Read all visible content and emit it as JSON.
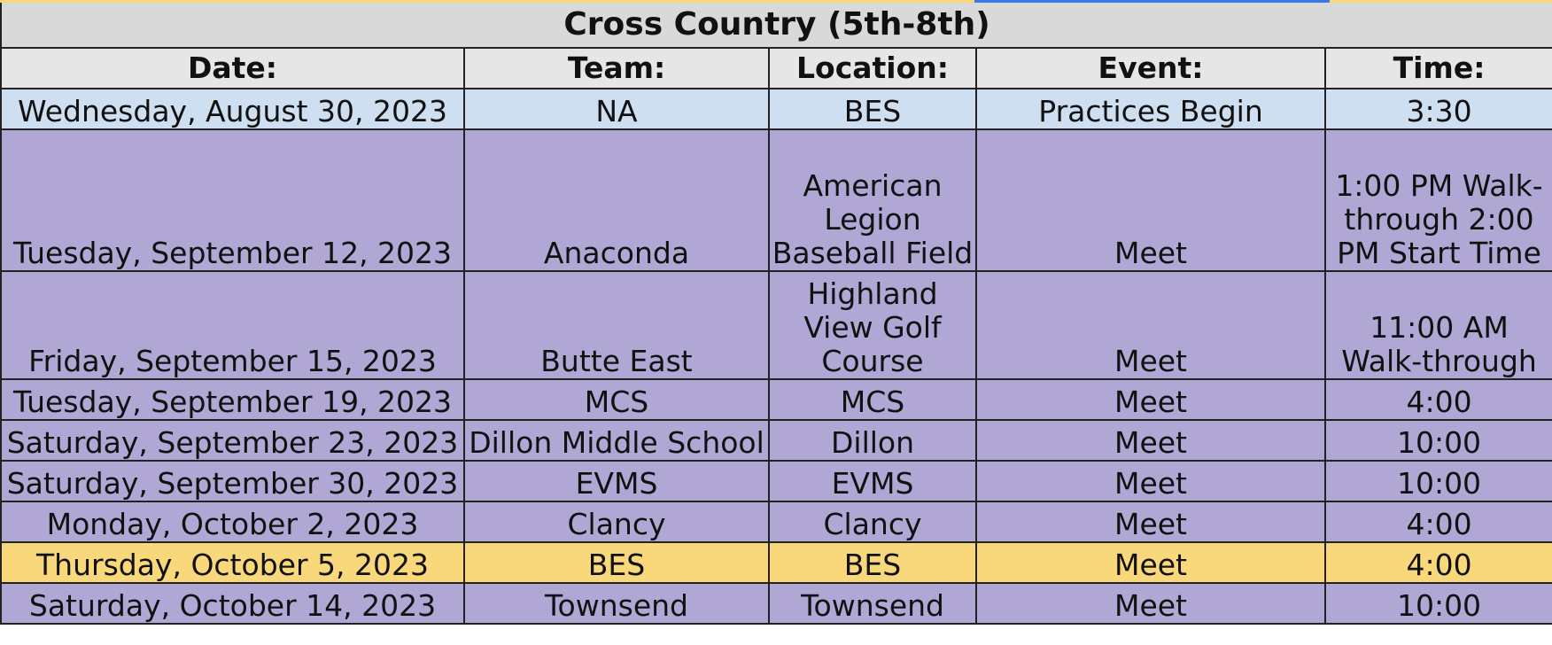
{
  "title": "Cross Country (5th-8th)",
  "columns": [
    "Date:",
    "Team:",
    "Location:",
    "Event:",
    "Time:"
  ],
  "rows": [
    {
      "style": "practice",
      "date": "Wednesday, August 30, 2023",
      "team": "NA",
      "location": "BES",
      "event": "Practices Begin",
      "time": "3:30"
    },
    {
      "style": "meet",
      "date": "Tuesday, September 12, 2023",
      "team": "Anaconda",
      "location": "American Legion Baseball Field",
      "event": "Meet",
      "time": "1:00 PM Walk-through 2:00 PM Start Time"
    },
    {
      "style": "meet",
      "date": "Friday, September 15, 2023",
      "team": "Butte East",
      "location": "Highland View Golf Course",
      "event": "Meet",
      "time": "11:00 AM Walk-through"
    },
    {
      "style": "meet",
      "date": "Tuesday, September 19, 2023",
      "team": "MCS",
      "location": "MCS",
      "event": "Meet",
      "time": "4:00"
    },
    {
      "style": "meet",
      "date": "Saturday, September 23, 2023",
      "team": "Dillon Middle School",
      "location": "Dillon",
      "event": "Meet",
      "time": "10:00"
    },
    {
      "style": "meet",
      "date": "Saturday, September 30, 2023",
      "team": "EVMS",
      "location": "EVMS",
      "event": "Meet",
      "time": "10:00"
    },
    {
      "style": "meet",
      "date": "Monday, October 2, 2023",
      "team": "Clancy",
      "location": "Clancy",
      "event": "Meet",
      "time": "4:00"
    },
    {
      "style": "home",
      "date": "Thursday, October 5, 2023",
      "team": "BES",
      "location": "BES",
      "event": "Meet",
      "time": "4:00"
    },
    {
      "style": "meet",
      "date": "Saturday, October 14, 2023",
      "team": "Townsend",
      "location": "Townsend",
      "event": "Meet",
      "time": "10:00"
    }
  ],
  "colors": {
    "title_bg": "#d9d9d9",
    "header_bg": "#e6e6e6",
    "practice_bg": "#cfdff2",
    "meet_bg": "#b1a7d5",
    "home_bg": "#f8d87a",
    "selection_accent": "#3b78e7"
  }
}
